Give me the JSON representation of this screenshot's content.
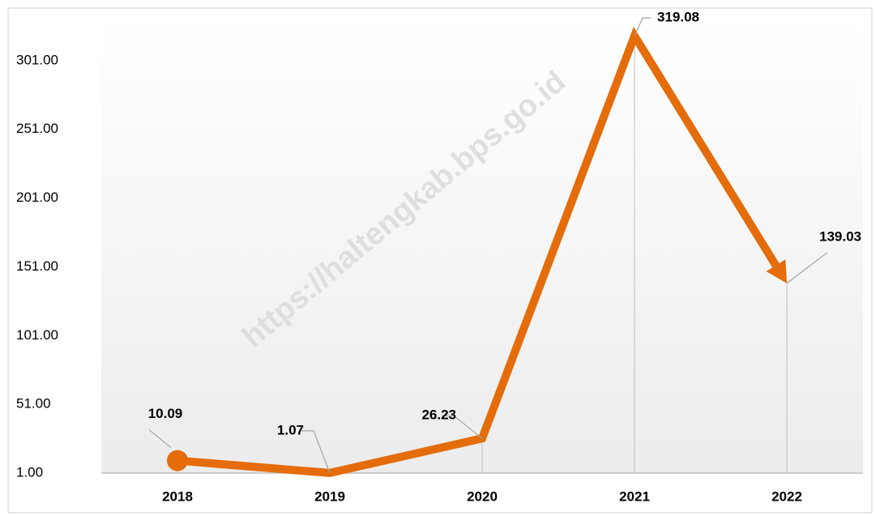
{
  "chart_data": {
    "type": "line",
    "watermark": "https://haltengkab.bps.go.id",
    "categories": [
      "2018",
      "2019",
      "2020",
      "2021",
      "2022"
    ],
    "series": [
      {
        "color": "#e46c0a",
        "values": [
          10.09,
          1.07,
          26.23,
          319.08,
          139.03
        ]
      }
    ],
    "ylim": [
      1,
      331
    ],
    "yticks": [
      {
        "value": 1,
        "label": "1.00"
      },
      {
        "value": 51,
        "label": "51.00"
      },
      {
        "value": 101,
        "label": "101.00"
      },
      {
        "value": 151,
        "label": "151.00"
      },
      {
        "value": 201,
        "label": "201.00"
      },
      {
        "value": 251,
        "label": "251.00"
      },
      {
        "value": 301,
        "label": "301.00"
      }
    ],
    "grid": false,
    "drop_lines": true
  }
}
